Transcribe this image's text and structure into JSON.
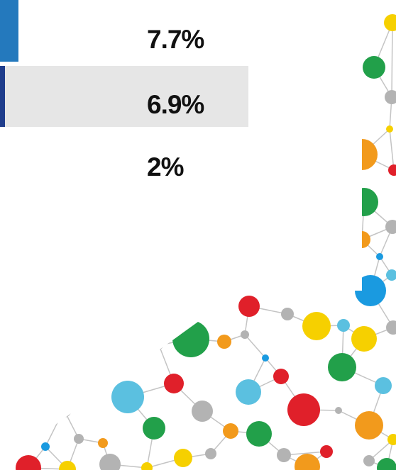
{
  "rows": [
    {
      "value_label": "7.7%"
    },
    {
      "value_label": "6.9%"
    },
    {
      "value_label": "2%"
    }
  ]
}
